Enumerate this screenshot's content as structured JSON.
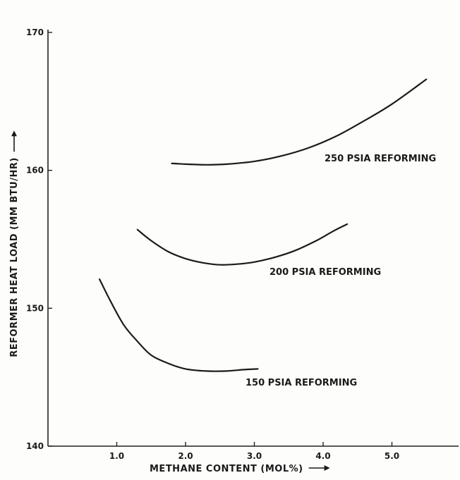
{
  "chart_data": {
    "type": "line",
    "xlabel": "METHANE CONTENT (MOL%)",
    "ylabel": "REFORMER HEAT LOAD (MM BTU/HR)",
    "xlim": [
      0,
      6
    ],
    "ylim": [
      140,
      170
    ],
    "x_ticks": [
      "1.0",
      "2.0",
      "3.0",
      "4.0",
      "5.0"
    ],
    "x_tick_values": [
      1,
      2,
      3,
      4,
      5
    ],
    "y_ticks": [
      "140",
      "150",
      "160",
      "170"
    ],
    "y_tick_values": [
      140,
      150,
      160,
      170
    ],
    "grid": false,
    "series": [
      {
        "name": "250 PSIA REFORMING",
        "x": [
          1.8,
          2.0,
          2.3,
          2.6,
          3.0,
          3.4,
          3.8,
          4.2,
          4.6,
          5.0,
          5.5
        ],
        "y": [
          160.5,
          160.45,
          160.4,
          160.45,
          160.65,
          161.05,
          161.65,
          162.5,
          163.6,
          164.8,
          166.6
        ]
      },
      {
        "name": "200 PSIA REFORMING",
        "x": [
          1.3,
          1.5,
          1.75,
          2.0,
          2.25,
          2.5,
          2.75,
          3.0,
          3.3,
          3.6,
          3.9,
          4.15,
          4.35
        ],
        "y": [
          155.7,
          154.9,
          154.1,
          153.6,
          153.3,
          153.15,
          153.2,
          153.35,
          153.7,
          154.2,
          154.9,
          155.6,
          156.1
        ]
      },
      {
        "name": "150 PSIA REFORMING",
        "x": [
          0.75,
          0.9,
          1.1,
          1.3,
          1.5,
          1.75,
          2.0,
          2.3,
          2.6,
          2.85,
          3.05
        ],
        "y": [
          152.1,
          150.6,
          148.8,
          147.6,
          146.6,
          146.0,
          145.6,
          145.45,
          145.45,
          145.55,
          145.6
        ]
      }
    ]
  }
}
